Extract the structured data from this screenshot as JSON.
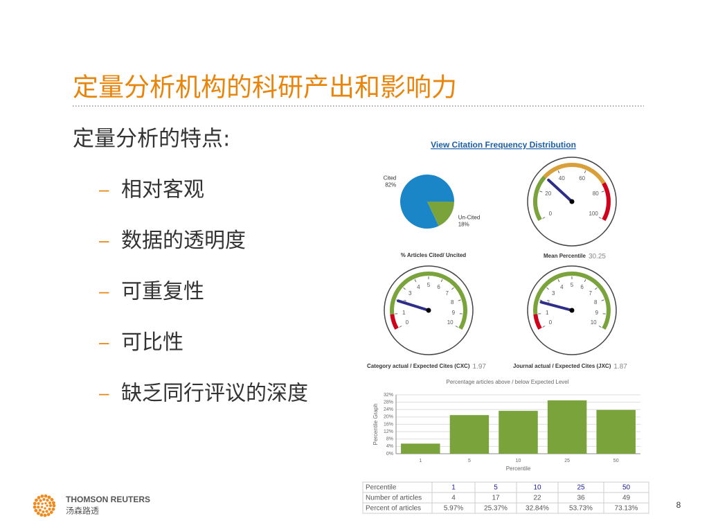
{
  "slide": {
    "title": "定量分析机构的科研产出和影响力",
    "subtitle": "定量分析的特点:",
    "bullet_marker": "–",
    "bullets": [
      "相对客观",
      "数据的透明度",
      "可重复性",
      "可比性",
      "缺乏同行评议的深度"
    ],
    "page_number": "8",
    "logo": {
      "name": "THOMSON REUTERS",
      "name_cn": "汤森路透"
    }
  },
  "link": "View Citation Frequency Distribution",
  "chart_data": [
    {
      "type": "pie",
      "title": "% Articles Cited/ Uncited",
      "categories": [
        "Cited",
        "Un-Cited"
      ],
      "values": [
        82,
        18
      ],
      "value_labels": [
        "82%",
        "18%"
      ],
      "colors": [
        "#1a86c8",
        "#7aa33b"
      ]
    },
    {
      "type": "gauge",
      "title": "Mean Percentile",
      "value": 30.25,
      "ylim": [
        0,
        100
      ],
      "yticks": [
        0,
        20,
        40,
        60,
        80,
        100
      ],
      "bands": [
        {
          "from": 0,
          "to": 30,
          "color": "#7aa33b"
        },
        {
          "from": 30,
          "to": 75,
          "color": "#d9a03a"
        },
        {
          "from": 75,
          "to": 100,
          "color": "#d0021b"
        }
      ],
      "needle_color": "#2e2e8a"
    },
    {
      "type": "gauge",
      "title": "Category actual / Expected Cites (CXC)",
      "value": 1.97,
      "ylim": [
        0,
        10
      ],
      "yticks": [
        0,
        1,
        2,
        3,
        4,
        5,
        6,
        7,
        8,
        9,
        10
      ],
      "bands": [
        {
          "from": 0,
          "to": 1,
          "color": "#d0021b"
        },
        {
          "from": 1,
          "to": 10,
          "color": "#7aa33b"
        }
      ],
      "needle_color": "#2e2e8a"
    },
    {
      "type": "gauge",
      "title": "Journal actual / Expected Cites (JXC)",
      "value": 1.87,
      "ylim": [
        0,
        10
      ],
      "yticks": [
        0,
        1,
        2,
        3,
        4,
        5,
        6,
        7,
        8,
        9,
        10
      ],
      "bands": [
        {
          "from": 0,
          "to": 1,
          "color": "#d0021b"
        },
        {
          "from": 1,
          "to": 10,
          "color": "#7aa33b"
        }
      ],
      "needle_color": "#2e2e8a"
    },
    {
      "type": "bar",
      "title": "Percentage articles above / below Expected Level",
      "xlabel": "Percentile",
      "ylabel": "Percentile Graph",
      "categories": [
        "1",
        "5",
        "10",
        "25",
        "50"
      ],
      "values": [
        5.5,
        21,
        23.3,
        29,
        23.8
      ],
      "color": "#7aa33b",
      "ylim": [
        0,
        32
      ],
      "yticks": [
        {
          "value": 0,
          "label": "0%"
        },
        {
          "value": 4,
          "label": "4%"
        },
        {
          "value": 8,
          "label": "8%"
        },
        {
          "value": 12,
          "label": "12%"
        },
        {
          "value": 16,
          "label": "16%"
        },
        {
          "value": 20,
          "label": "20%"
        },
        {
          "value": 24,
          "label": "24%"
        },
        {
          "value": 28,
          "label": "28%"
        },
        {
          "value": 32,
          "label": "32%"
        }
      ],
      "grid": true
    }
  ],
  "table": {
    "header": [
      "Percentile",
      "1",
      "5",
      "10",
      "25",
      "50"
    ],
    "rows": [
      [
        "Number of articles",
        "4",
        "17",
        "22",
        "36",
        "49"
      ],
      [
        "Percent of articles",
        "5.97%",
        "25.37%",
        "32.84%",
        "53.73%",
        "73.13%"
      ]
    ]
  }
}
